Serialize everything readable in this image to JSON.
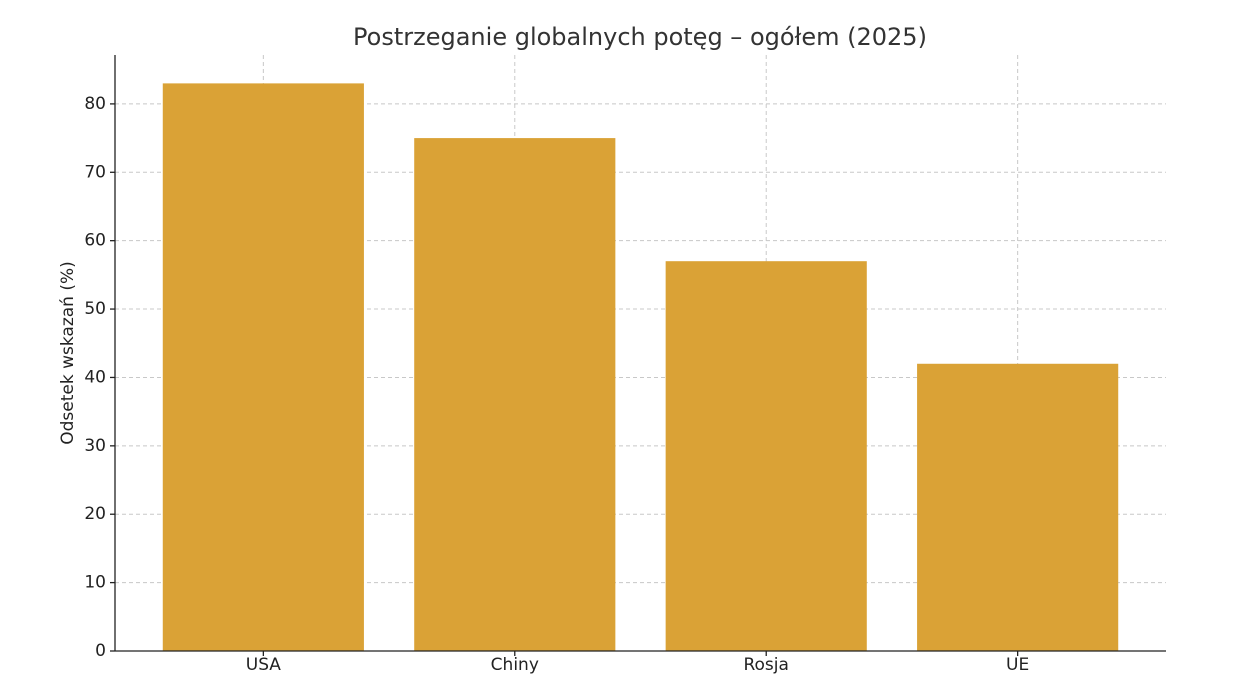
{
  "chart_data": {
    "type": "bar",
    "title": "Postrzeganie globalnych potęg – ogółem (2025)",
    "y_label": "Odsetek wskazań (%)",
    "categories": [
      "USA",
      "Chiny",
      "Rosja",
      "UE"
    ],
    "values": [
      83,
      75,
      57,
      42
    ],
    "color": "#daa236",
    "ylim": [
      0,
      87.15
    ],
    "yticks": [
      0,
      10,
      20,
      30,
      40,
      50,
      60,
      70,
      80
    ],
    "grid": true
  }
}
